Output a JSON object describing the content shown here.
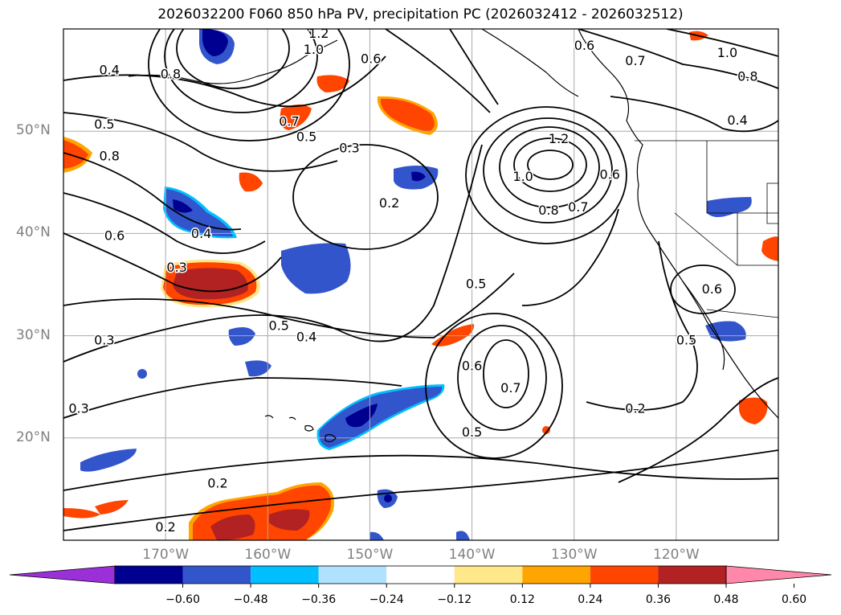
{
  "title": "2026032200 F060 850 hPa PV, precipitation PC (2026032412 - 2026032512)",
  "map": {
    "lon_range": [
      -180,
      -110
    ],
    "lat_range": [
      10,
      60
    ],
    "lat_labels": [
      {
        "lat": 50,
        "label": "50°N"
      },
      {
        "lat": 40,
        "label": "40°N"
      },
      {
        "lat": 30,
        "label": "30°N"
      },
      {
        "lat": 20,
        "label": "20°N"
      }
    ],
    "lon_labels": [
      {
        "lon": -170,
        "label": "170°W"
      },
      {
        "lon": -160,
        "label": "160°W"
      },
      {
        "lon": -150,
        "label": "150°W"
      },
      {
        "lon": -140,
        "label": "140°W"
      },
      {
        "lon": -130,
        "label": "130°W"
      },
      {
        "lon": -120,
        "label": "120°W"
      }
    ],
    "contour_labels": [
      {
        "text": "1.2",
        "lon": -155,
        "lat": 59.5
      },
      {
        "text": "1.0",
        "lon": -155.5,
        "lat": 57.9
      },
      {
        "text": "0.8",
        "lon": -169.5,
        "lat": 55.5
      },
      {
        "text": "0.6",
        "lon": -149.9,
        "lat": 57
      },
      {
        "text": "0.4",
        "lon": -175.5,
        "lat": 55.9
      },
      {
        "text": "0.5",
        "lon": -176,
        "lat": 50.6
      },
      {
        "text": "0.8",
        "lon": -175.5,
        "lat": 47.5
      },
      {
        "text": "0.6",
        "lon": -175,
        "lat": 39.7
      },
      {
        "text": "0.4",
        "lon": -166.5,
        "lat": 39.9
      },
      {
        "text": "0.3",
        "lon": -168.9,
        "lat": 36.6
      },
      {
        "text": "0.7",
        "lon": -157.9,
        "lat": 50.9
      },
      {
        "text": "0.5",
        "lon": -156.2,
        "lat": 49.4
      },
      {
        "text": "0.3",
        "lon": -152,
        "lat": 48.3
      },
      {
        "text": "0.2",
        "lon": -148.1,
        "lat": 42.9
      },
      {
        "text": "0.5",
        "lon": -158.9,
        "lat": 30.9
      },
      {
        "text": "0.4",
        "lon": -156.2,
        "lat": 29.8
      },
      {
        "text": "0.3",
        "lon": -176,
        "lat": 29.5
      },
      {
        "text": "0.3",
        "lon": -178.5,
        "lat": 22.8
      },
      {
        "text": "0.2",
        "lon": -164.9,
        "lat": 15.5
      },
      {
        "text": "0.2",
        "lon": -170,
        "lat": 11.2
      },
      {
        "text": "1.2",
        "lon": -131.5,
        "lat": 49.2
      },
      {
        "text": "1.0",
        "lon": -135,
        "lat": 45.5
      },
      {
        "text": "0.8",
        "lon": -132.5,
        "lat": 42.2
      },
      {
        "text": "0.7",
        "lon": -129.6,
        "lat": 42.5
      },
      {
        "text": "0.6",
        "lon": -126.5,
        "lat": 45.7
      },
      {
        "text": "0.6",
        "lon": -129,
        "lat": 58.3
      },
      {
        "text": "0.7",
        "lon": -124,
        "lat": 56.8
      },
      {
        "text": "1.0",
        "lon": -115,
        "lat": 57.6
      },
      {
        "text": "0.8",
        "lon": -113,
        "lat": 55.3
      },
      {
        "text": "0.4",
        "lon": -114,
        "lat": 51
      },
      {
        "text": "0.5",
        "lon": -139.6,
        "lat": 35
      },
      {
        "text": "0.6",
        "lon": -140,
        "lat": 27
      },
      {
        "text": "0.7",
        "lon": -136.2,
        "lat": 24.8
      },
      {
        "text": "0.5",
        "lon": -140,
        "lat": 20.5
      },
      {
        "text": "0.2",
        "lon": -124,
        "lat": 22.8
      },
      {
        "text": "0.6",
        "lon": -116.5,
        "lat": 34.5
      },
      {
        "text": "0.5",
        "lon": -119,
        "lat": 29.5
      }
    ]
  },
  "colorbar": {
    "colors": [
      "#9b30d9",
      "#000090",
      "#3355cc",
      "#00bfff",
      "#b0e2ff",
      "#ffffff",
      "#ffe88a",
      "#ffa500",
      "#ff4500",
      "#b22222",
      "#ff88aa"
    ],
    "ticks": [
      "−0.60",
      "−0.48",
      "−0.36",
      "−0.24",
      "−0.12",
      "0.12",
      "0.24",
      "0.36",
      "0.48",
      "0.60"
    ]
  },
  "precip_colors": {
    "dark_blue": "#000090",
    "mid_blue": "#3355cc",
    "light_blue": "#00bfff",
    "pale_blue": "#b0e2ff",
    "yellow": "#ffe88a",
    "orange": "#ffa500",
    "red_orange": "#ff4500",
    "dark_red": "#b22222"
  }
}
